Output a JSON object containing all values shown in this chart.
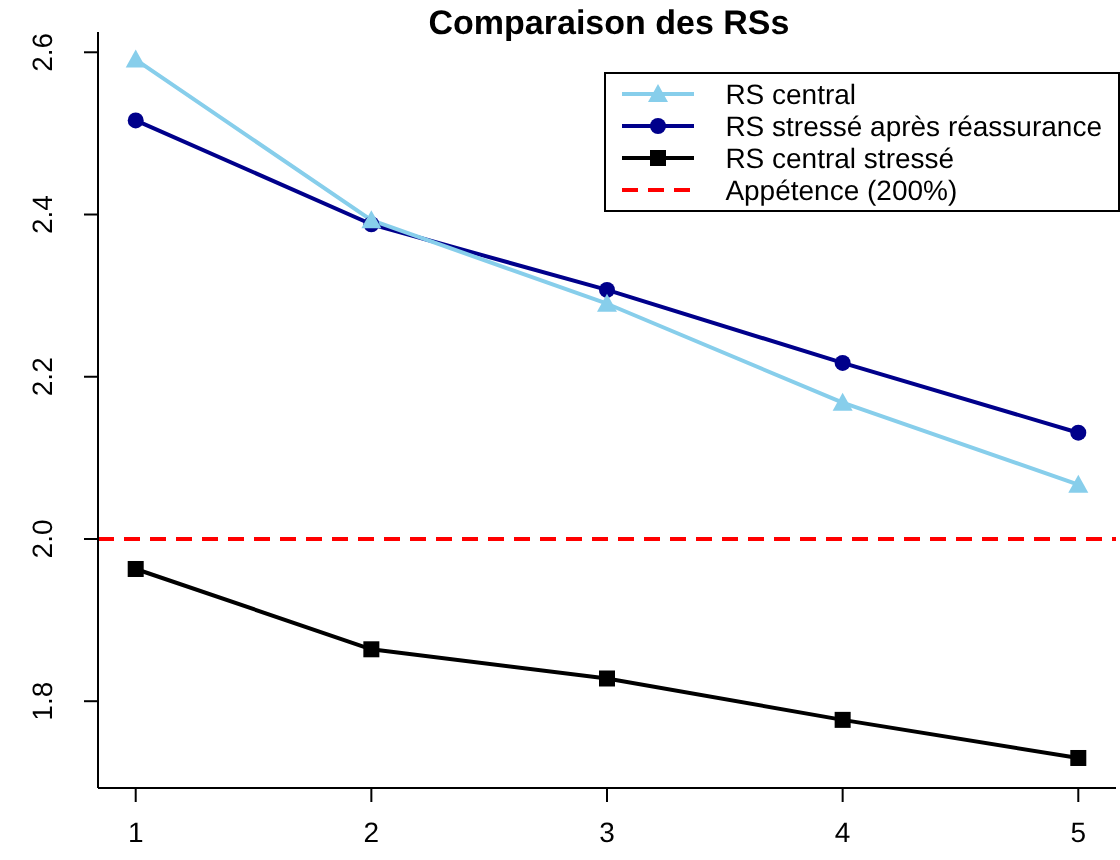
{
  "chart_data": {
    "type": "line",
    "title": "Comparaison des RSs",
    "x": [
      1,
      2,
      3,
      4,
      5
    ],
    "xlim": [
      0.84,
      5.16
    ],
    "xticks": [
      1,
      2,
      3,
      4,
      5
    ],
    "ylim": [
      1.693,
      2.625
    ],
    "yticks": [
      {
        "value": 1.8,
        "label": "1.8"
      },
      {
        "value": 2.0,
        "label": "2.0"
      },
      {
        "value": 2.2,
        "label": "2.2"
      },
      {
        "value": 2.4,
        "label": "2.4"
      },
      {
        "value": 2.6,
        "label": "2.6"
      }
    ],
    "grid": false,
    "legend": "top right",
    "line_style": "solid",
    "series": [
      {
        "name": "RS central",
        "color": "#87ceeb",
        "marker": "triangle",
        "values": [
          2.591,
          2.393,
          2.29,
          2.168,
          2.067
        ]
      },
      {
        "name": "RS stressé après réassurance",
        "color": "#00008b",
        "marker": "circle",
        "values": [
          2.516,
          2.388,
          2.307,
          2.217,
          2.131
        ]
      },
      {
        "name": "RS central stressé",
        "color": "#000000",
        "marker": "square",
        "values": [
          1.963,
          1.864,
          1.828,
          1.777,
          1.73
        ]
      }
    ],
    "ref_lines": [
      {
        "axis": "y",
        "value": 2.0,
        "label": "Appétence (200%)",
        "color": "#ff0000",
        "line_style": "dashed"
      }
    ]
  }
}
